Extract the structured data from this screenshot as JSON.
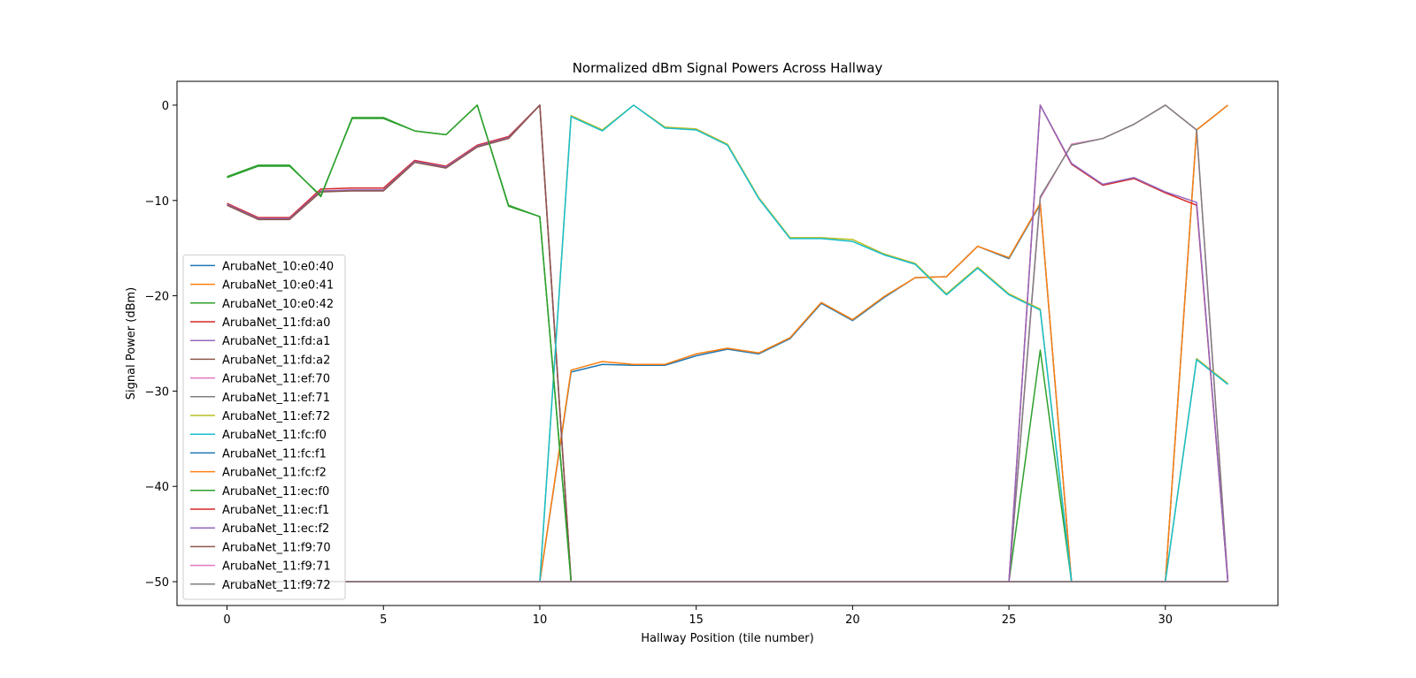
{
  "chart_data": {
    "type": "line",
    "title": "Normalized dBm Signal Powers Across Hallway",
    "xlabel": "Hallway Position (tile number)",
    "ylabel": "Signal Power (dBm)",
    "xlim": [
      -1.6,
      33.6
    ],
    "ylim": [
      -52.5,
      2.5
    ],
    "xticks": [
      0,
      5,
      10,
      15,
      20,
      25,
      30
    ],
    "yticks": [
      0,
      -10,
      -20,
      -30,
      -40,
      -50
    ],
    "grid": false,
    "legend_position": "lower-left",
    "x": [
      0,
      1,
      2,
      3,
      4,
      5,
      6,
      7,
      8,
      9,
      10,
      11,
      12,
      13,
      14,
      15,
      16,
      17,
      18,
      19,
      20,
      21,
      22,
      23,
      24,
      25,
      26,
      27,
      28,
      29,
      30,
      31,
      32
    ],
    "series": [
      {
        "name": "ArubaNet_10:e0:40",
        "color": "#1f77b4",
        "values": [
          -50,
          -50,
          -50,
          -50,
          -50,
          -50,
          -50,
          -50,
          -50,
          -50,
          -50,
          -28,
          -27.2,
          -27.3,
          -27.3,
          -26.3,
          -25.6,
          -26.1,
          -24.5,
          -20.8,
          -22.6,
          -20.2,
          -18.1,
          -18,
          -14.8,
          -16.1,
          -10.4,
          -50,
          -50,
          -50,
          -50,
          -2.6,
          0
        ]
      },
      {
        "name": "ArubaNet_10:e0:41",
        "color": "#ff7f0e",
        "values": [
          -50,
          -50,
          -50,
          -50,
          -50,
          -50,
          -50,
          -50,
          -50,
          -50,
          -50,
          -27.8,
          -26.9,
          -27.2,
          -27.2,
          -26.1,
          -25.5,
          -26,
          -24.4,
          -20.7,
          -22.5,
          -20.1,
          -18.1,
          -18,
          -14.8,
          -16,
          -10.3,
          -50,
          -50,
          -50,
          -50,
          -2.6,
          0
        ]
      },
      {
        "name": "ArubaNet_10:e0:42",
        "color": "#2ca02c",
        "values": [
          -7.5,
          -6.3,
          -6.3,
          -9.6,
          -1.3,
          -1.3,
          -2.7,
          -3.1,
          0,
          -10.5,
          -11.7,
          -50,
          -50,
          -50,
          -50,
          -50,
          -50,
          -50,
          -50,
          -50,
          -50,
          -50,
          -50,
          -50,
          -50,
          -50,
          -25.7,
          -50,
          -50,
          -50,
          -50,
          -50,
          -50
        ]
      },
      {
        "name": "ArubaNet_11:fd:a0",
        "color": "#d62728",
        "values": [
          -10.3,
          -11.8,
          -11.8,
          -8.8,
          -8.7,
          -8.7,
          -5.8,
          -6.4,
          -4.2,
          -3.3,
          0,
          -50,
          -50,
          -50,
          -50,
          -50,
          -50,
          -50,
          -50,
          -50,
          -50,
          -50,
          -50,
          -50,
          -50,
          -50,
          -50,
          -50,
          -50,
          -50,
          -50,
          -50,
          -50
        ]
      },
      {
        "name": "ArubaNet_11:fd:a1",
        "color": "#9467bd",
        "values": [
          -10.4,
          -11.9,
          -11.9,
          -9,
          -8.9,
          -8.9,
          -5.9,
          -6.5,
          -4.3,
          -3.4,
          0,
          -50,
          -50,
          -50,
          -50,
          -50,
          -50,
          -50,
          -50,
          -50,
          -50,
          -50,
          -50,
          -50,
          -50,
          -50,
          -50,
          -50,
          -50,
          -50,
          -50,
          -50,
          -50
        ]
      },
      {
        "name": "ArubaNet_11:fd:a2",
        "color": "#8c564b",
        "values": [
          -10.5,
          -12,
          -12,
          -9.1,
          -9,
          -9,
          -6,
          -6.6,
          -4.4,
          -3.5,
          0,
          -50,
          -50,
          -50,
          -50,
          -50,
          -50,
          -50,
          -50,
          -50,
          -50,
          -50,
          -50,
          -50,
          -50,
          -50,
          -50,
          -50,
          -50,
          -50,
          -50,
          -50,
          -50
        ]
      },
      {
        "name": "ArubaNet_11:ef:70",
        "color": "#e377c2",
        "values": [
          -50,
          -50,
          -50,
          -50,
          -50,
          -50,
          -50,
          -50,
          -50,
          -50,
          -50,
          -50,
          -50,
          -50,
          -50,
          -50,
          -50,
          -50,
          -50,
          -50,
          -50,
          -50,
          -50,
          -50,
          -50,
          -50,
          -9.8,
          -4.1,
          -3.5,
          -2,
          0,
          -2.6,
          -50
        ]
      },
      {
        "name": "ArubaNet_11:ef:71",
        "color": "#7f7f7f",
        "values": [
          -50,
          -50,
          -50,
          -50,
          -50,
          -50,
          -50,
          -50,
          -50,
          -50,
          -50,
          -50,
          -50,
          -50,
          -50,
          -50,
          -50,
          -50,
          -50,
          -50,
          -50,
          -50,
          -50,
          -50,
          -50,
          -50,
          -9.6,
          -4.2,
          -3.5,
          -2,
          0,
          -2.6,
          -50
        ]
      },
      {
        "name": "ArubaNet_11:ef:72",
        "color": "#bcbd22",
        "values": [
          -50,
          -50,
          -50,
          -50,
          -50,
          -50,
          -50,
          -50,
          -50,
          -50,
          -50,
          -1.1,
          -2.6,
          0,
          -2.3,
          -2.5,
          -4.1,
          -9.7,
          -13.9,
          -13.9,
          -14.1,
          -15.6,
          -16.6,
          -19.8,
          -17,
          -19.8,
          -21.4,
          -50,
          -50,
          -50,
          -50,
          -26.6,
          -29.2
        ]
      },
      {
        "name": "ArubaNet_11:fc:f0",
        "color": "#17becf",
        "values": [
          -50,
          -50,
          -50,
          -50,
          -50,
          -50,
          -50,
          -50,
          -50,
          -50,
          -50,
          -1.2,
          -2.7,
          0,
          -2.4,
          -2.6,
          -4.2,
          -9.8,
          -14,
          -14,
          -14.3,
          -15.7,
          -16.7,
          -19.9,
          -17.1,
          -19.9,
          -21.5,
          -50,
          -50,
          -50,
          -50,
          -26.7,
          -29.3
        ]
      },
      {
        "name": "ArubaNet_11:fc:f1",
        "color": "#1f77b4",
        "values": [
          -50,
          -50,
          -50,
          -50,
          -50,
          -50,
          -50,
          -50,
          -50,
          -50,
          -50,
          -50,
          -50,
          -50,
          -50,
          -50,
          -50,
          -50,
          -50,
          -50,
          -50,
          -50,
          -50,
          -50,
          -50,
          -50,
          -50,
          -50,
          -50,
          -50,
          -50,
          -50,
          -50
        ]
      },
      {
        "name": "ArubaNet_11:fc:f2",
        "color": "#ff7f0e",
        "values": [
          -50,
          -50,
          -50,
          -50,
          -50,
          -50,
          -50,
          -50,
          -50,
          -50,
          -50,
          -50,
          -50,
          -50,
          -50,
          -50,
          -50,
          -50,
          -50,
          -50,
          -50,
          -50,
          -50,
          -50,
          -50,
          -50,
          -50,
          -50,
          -50,
          -50,
          -50,
          -50,
          -50
        ]
      },
      {
        "name": "ArubaNet_11:ec:f0",
        "color": "#2ca02c",
        "values": [
          -7.6,
          -6.4,
          -6.4,
          -9.5,
          -1.4,
          -1.4,
          -2.7,
          -3.1,
          0,
          -10.6,
          -11.7,
          -50,
          -50,
          -50,
          -50,
          -50,
          -50,
          -50,
          -50,
          -50,
          -50,
          -50,
          -50,
          -50,
          -50,
          -50,
          -50,
          -50,
          -50,
          -50,
          -50,
          -50,
          -50
        ]
      },
      {
        "name": "ArubaNet_11:ec:f1",
        "color": "#d62728",
        "values": [
          -50,
          -50,
          -50,
          -50,
          -50,
          -50,
          -50,
          -50,
          -50,
          -50,
          -50,
          -50,
          -50,
          -50,
          -50,
          -50,
          -50,
          -50,
          -50,
          -50,
          -50,
          -50,
          -50,
          -50,
          -50,
          -50,
          0,
          -6.2,
          -8.4,
          -7.7,
          -9.2,
          -10.5,
          -50
        ]
      },
      {
        "name": "ArubaNet_11:ec:f2",
        "color": "#9467bd",
        "values": [
          -50,
          -50,
          -50,
          -50,
          -50,
          -50,
          -50,
          -50,
          -50,
          -50,
          -50,
          -50,
          -50,
          -50,
          -50,
          -50,
          -50,
          -50,
          -50,
          -50,
          -50,
          -50,
          -50,
          -50,
          -50,
          -50,
          0,
          -6.1,
          -8.3,
          -7.6,
          -9.1,
          -10.2,
          -50
        ]
      },
      {
        "name": "ArubaNet_11:f9:70",
        "color": "#8c564b",
        "values": [
          -50,
          -50,
          -50,
          -50,
          -50,
          -50,
          -50,
          -50,
          -50,
          -50,
          -50,
          -50,
          -50,
          -50,
          -50,
          -50,
          -50,
          -50,
          -50,
          -50,
          -50,
          -50,
          -50,
          -50,
          -50,
          -50,
          -50,
          -50,
          -50,
          -50,
          -50,
          -50,
          -50
        ]
      },
      {
        "name": "ArubaNet_11:f9:71",
        "color": "#e377c2",
        "values": [
          -50,
          -50,
          -50,
          -50,
          -50,
          -50,
          -50,
          -50,
          -50,
          -50,
          -50,
          -50,
          -50,
          -50,
          -50,
          -50,
          -50,
          -50,
          -50,
          -50,
          -50,
          -50,
          -50,
          -50,
          -50,
          -50,
          -50,
          -50,
          -50,
          -50,
          -50,
          -50,
          -50
        ]
      },
      {
        "name": "ArubaNet_11:f9:72",
        "color": "#7f7f7f",
        "values": [
          -50,
          -50,
          -50,
          -50,
          -50,
          -50,
          -50,
          -50,
          -50,
          -50,
          -50,
          -50,
          -50,
          -50,
          -50,
          -50,
          -50,
          -50,
          -50,
          -50,
          -50,
          -50,
          -50,
          -50,
          -50,
          -50,
          -50,
          -50,
          -50,
          -50,
          -50,
          -50,
          -50
        ]
      }
    ]
  }
}
